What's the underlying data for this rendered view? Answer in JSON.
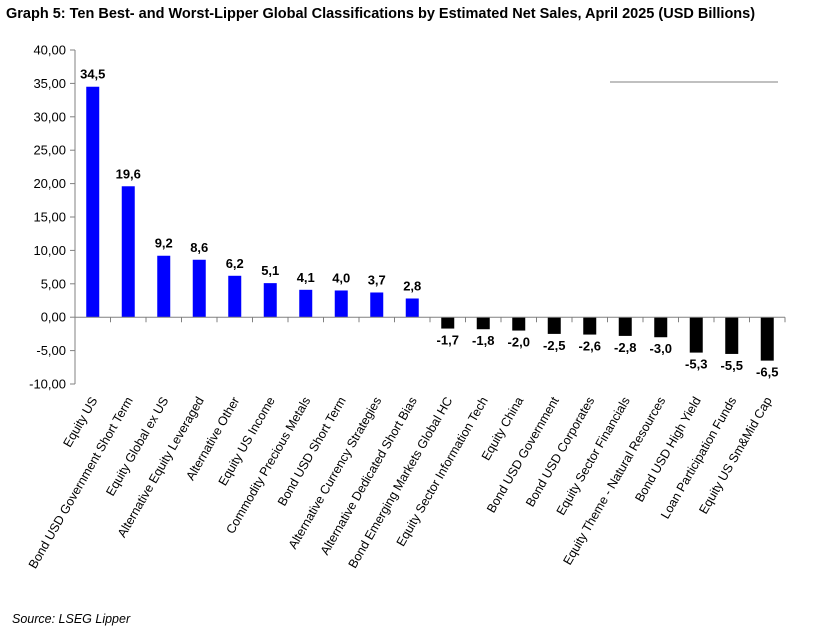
{
  "title": "Graph 5: Ten Best- and Worst-Lipper Global Classifications by Estimated Net Sales, April 2025 (USD Billions)",
  "source": "Source: LSEG Lipper",
  "colors": {
    "positive": "#0000ff",
    "negative": "#000000",
    "axis": "#808080"
  },
  "chart_data": {
    "type": "bar",
    "title": "Graph 5: Ten Best- and Worst-Lipper Global Classifications by Estimated Net Sales, April 2025 (USD Billions)",
    "xlabel": "",
    "ylabel": "",
    "ylim": [
      -10,
      40
    ],
    "yticks": [
      "40,00",
      "35,00",
      "30,00",
      "25,00",
      "20,00",
      "15,00",
      "10,00",
      "5,00",
      "0,00",
      "-5,00",
      "-10,00"
    ],
    "ytick_values": [
      40,
      35,
      30,
      25,
      20,
      15,
      10,
      5,
      0,
      -5,
      -10
    ],
    "categories": [
      "Equity US",
      "Bond USD Government Short Term",
      "Equity Global ex US",
      "Alternative Equity Leveraged",
      "Alternative Other",
      "Equity US Income",
      "Commodity Precious Metals",
      "Bond USD Short Term",
      "Alternative Currency Strategies",
      "Alternative Dedicated Short Bias",
      "Bond Emerging Markets Global HC",
      "Equity Sector Information Tech",
      "Equity China",
      "Bond USD Government",
      "Bond USD Corporates",
      "Equity Sector Financials",
      "Equity Theme - Natural Resources",
      "Bond USD High Yield",
      "Loan Participation Funds",
      "Equity US Sm&Mid Cap"
    ],
    "values": [
      34.5,
      19.6,
      9.2,
      8.6,
      6.2,
      5.1,
      4.1,
      4.0,
      3.7,
      2.8,
      -1.7,
      -1.8,
      -2.0,
      -2.5,
      -2.6,
      -2.8,
      -3.0,
      -5.3,
      -5.5,
      -6.5
    ],
    "value_labels": [
      "34,5",
      "19,6",
      "9,2",
      "8,6",
      "6,2",
      "5,1",
      "4,1",
      "4,0",
      "3,7",
      "2,8",
      "-1,7",
      "-1,8",
      "-2,0",
      "-2,5",
      "-2,6",
      "-2,8",
      "-3,0",
      "-5,3",
      "-5,5",
      "-6,5"
    ],
    "grid": false,
    "legend": "none"
  }
}
